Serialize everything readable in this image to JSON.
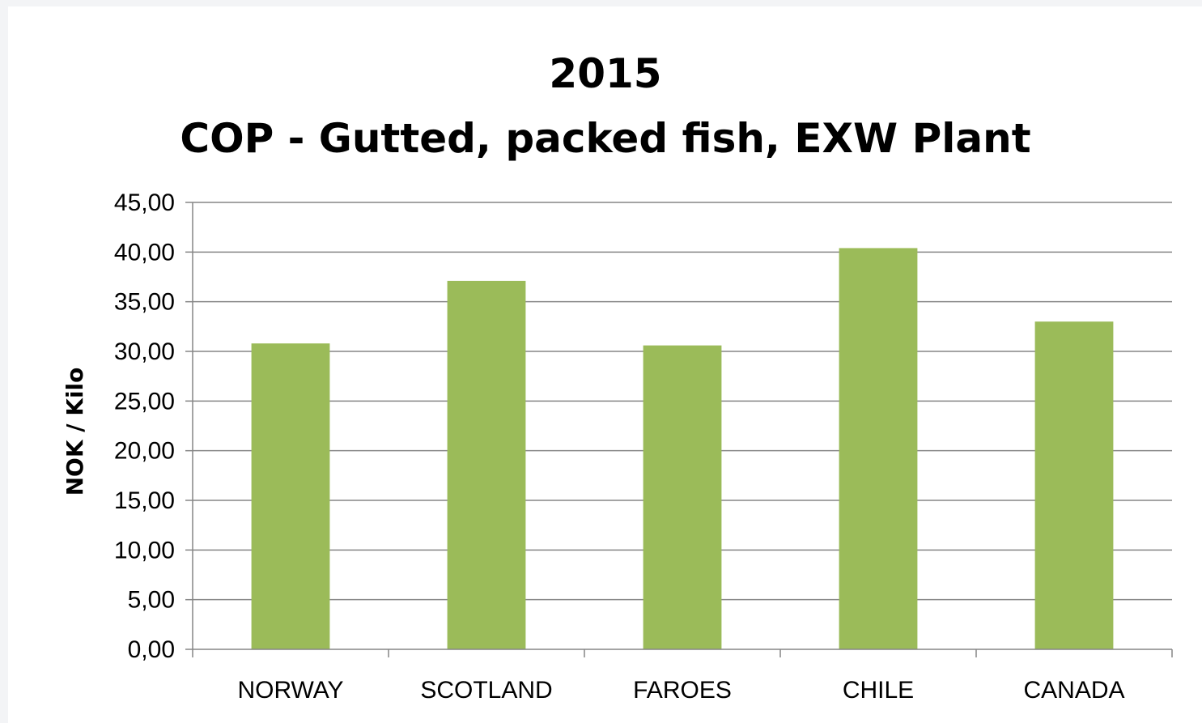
{
  "chart_data": {
    "type": "bar",
    "title": "2015",
    "subtitle": "COP - Gutted, packed fish, EXW Plant",
    "xlabel": "",
    "ylabel": "NOK / Kilo",
    "categories": [
      "NORWAY",
      "SCOTLAND",
      "FAROES",
      "CHILE",
      "CANADA"
    ],
    "values": [
      30.8,
      37.1,
      30.6,
      40.4,
      33.0
    ],
    "ylim": [
      0,
      45
    ],
    "ytick_step": 5,
    "ytick_labels": [
      "0,00",
      "5,00",
      "10,00",
      "15,00",
      "20,00",
      "25,00",
      "30,00",
      "35,00",
      "40,00",
      "45,00"
    ],
    "grid": true,
    "legend": "none",
    "bar_color": "#9bbb59",
    "grid_color": "#868686"
  }
}
